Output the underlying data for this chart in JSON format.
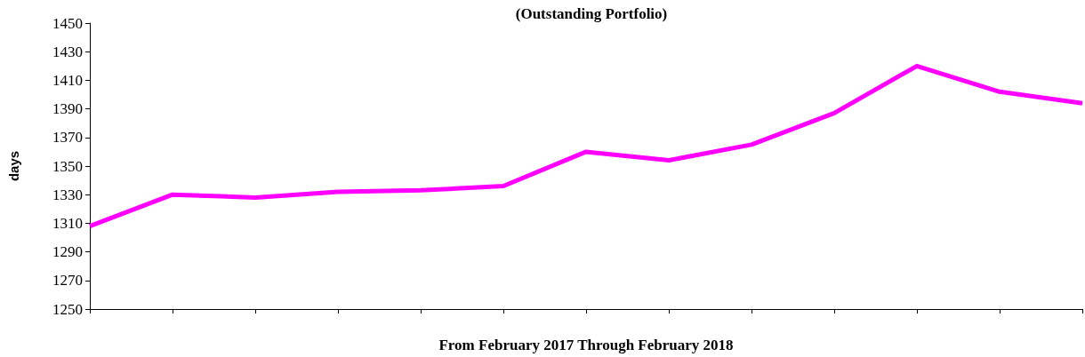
{
  "chart_data": {
    "type": "line",
    "title": "(Outstanding Portfolio)",
    "xlabel": "From February 2017 Through February 2018",
    "ylabel": "days",
    "categories": [
      null,
      null,
      null,
      null,
      null,
      null,
      null,
      null,
      null,
      null,
      null,
      null,
      null
    ],
    "series": [
      {
        "color": "#ff00ff",
        "values": [
          1308,
          1330,
          1328,
          1332,
          1333,
          1336,
          1360,
          1354,
          1365,
          1387,
          1420,
          1402,
          1394
        ]
      }
    ],
    "ylim": [
      1250,
      1450
    ],
    "yticks": [
      1250,
      1270,
      1290,
      1310,
      1330,
      1350,
      1370,
      1390,
      1410,
      1430,
      1450
    ],
    "grid": false,
    "marker": "none",
    "line_style": "solid"
  }
}
